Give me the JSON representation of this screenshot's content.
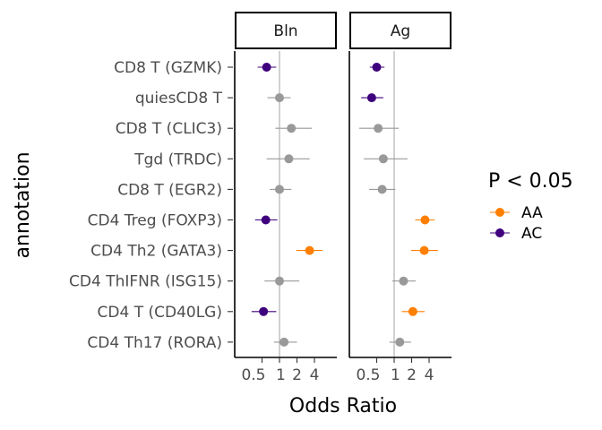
{
  "chart_data": {
    "type": "scatter",
    "subtype": "forest-plot",
    "xlabel": "Odds Ratio",
    "ylabel": "annotation",
    "x_scale": "log2",
    "xlim": [
      0.12,
      12
    ],
    "x_ticks": [
      0.5,
      1,
      2,
      4
    ],
    "x_tick_labels": [
      "0.5",
      "1",
      "2",
      "4"
    ],
    "reference_line": 1,
    "categories": [
      "CD8 T (GZMK)",
      "quiesCD8 T",
      "CD8 T (CLIC3)",
      "Tgd (TRDC)",
      "CD8 T (EGR2)",
      "CD4 Treg (FOXP3)",
      "CD4 Th2 (GATA3)",
      "CD4 ThIFNR (ISG15)",
      "CD4 T (CD40LG)",
      "CD4 Th17 (RORA)"
    ],
    "panels": [
      "Bln",
      "Ag"
    ],
    "legend": {
      "title": "P < 0.05",
      "position": "right",
      "entries": [
        {
          "label": "AA",
          "color": "#ff7f00"
        },
        {
          "label": "AC",
          "color": "#3f007d"
        }
      ]
    },
    "non_significant_color": "#999999",
    "grid": false,
    "series": [
      {
        "panel": "Bln",
        "points": [
          {
            "category": "CD8 T (GZMK)",
            "or": 0.6,
            "lo": 0.42,
            "hi": 0.88,
            "group": "AC"
          },
          {
            "category": "quiesCD8 T",
            "or": 1.0,
            "lo": 0.62,
            "hi": 1.55,
            "group": null
          },
          {
            "category": "CD8 T (CLIC3)",
            "or": 1.6,
            "lo": 0.85,
            "hi": 3.6,
            "group": null
          },
          {
            "category": "Tgd (TRDC)",
            "or": 1.45,
            "lo": 0.6,
            "hi": 3.3,
            "group": null
          },
          {
            "category": "CD8 T (EGR2)",
            "or": 1.0,
            "lo": 0.68,
            "hi": 1.6,
            "group": null
          },
          {
            "category": "CD4 Treg (FOXP3)",
            "or": 0.58,
            "lo": 0.38,
            "hi": 0.92,
            "group": "AC"
          },
          {
            "category": "CD4 Th2 (GATA3)",
            "or": 3.3,
            "lo": 1.95,
            "hi": 5.5,
            "group": "AA"
          },
          {
            "category": "CD4 ThIFNR (ISG15)",
            "or": 1.0,
            "lo": 0.55,
            "hi": 2.2,
            "group": null
          },
          {
            "category": "CD4 T (CD40LG)",
            "or": 0.53,
            "lo": 0.33,
            "hi": 0.88,
            "group": "AC"
          },
          {
            "category": "CD4 Th17 (RORA)",
            "or": 1.2,
            "lo": 0.8,
            "hi": 2.0,
            "group": null
          }
        ]
      },
      {
        "panel": "Ag",
        "points": [
          {
            "category": "CD8 T (GZMK)",
            "or": 0.5,
            "lo": 0.38,
            "hi": 0.68,
            "group": "AC"
          },
          {
            "category": "quiesCD8 T",
            "or": 0.41,
            "lo": 0.27,
            "hi": 0.65,
            "group": "AC"
          },
          {
            "category": "CD8 T (CLIC3)",
            "or": 0.53,
            "lo": 0.25,
            "hi": 1.2,
            "group": null
          },
          {
            "category": "Tgd (TRDC)",
            "or": 0.65,
            "lo": 0.3,
            "hi": 1.7,
            "group": null
          },
          {
            "category": "CD8 T (EGR2)",
            "or": 0.62,
            "lo": 0.37,
            "hi": 1.05,
            "group": null
          },
          {
            "category": "CD4 Treg (FOXP3)",
            "or": 3.4,
            "lo": 2.3,
            "hi": 5.0,
            "group": "AA"
          },
          {
            "category": "CD4 Th2 (GATA3)",
            "or": 3.3,
            "lo": 1.95,
            "hi": 5.7,
            "group": "AA"
          },
          {
            "category": "CD4 ThIFNR (ISG15)",
            "or": 1.45,
            "lo": 0.93,
            "hi": 2.35,
            "group": null
          },
          {
            "category": "CD4 T (CD40LG)",
            "or": 2.1,
            "lo": 1.35,
            "hi": 3.35,
            "group": "AA"
          },
          {
            "category": "CD4 Th17 (RORA)",
            "or": 1.25,
            "lo": 0.83,
            "hi": 1.95,
            "group": null
          }
        ]
      }
    ]
  }
}
